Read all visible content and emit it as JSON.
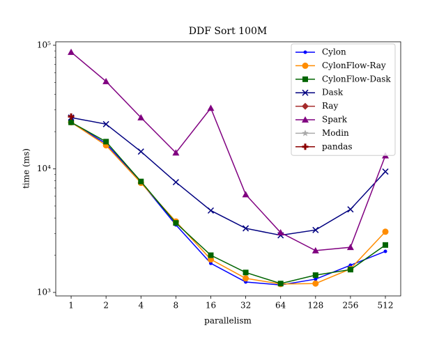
{
  "chart_data": {
    "type": "line",
    "title": "DDF Sort 100M",
    "x_label": "parallelism",
    "y_label": "time (ms)",
    "x": [
      1,
      2,
      4,
      8,
      16,
      32,
      64,
      128,
      256,
      512
    ],
    "xscale": "log",
    "yscale": "log",
    "xlim": [
      0.737,
      694
    ],
    "ylim": [
      937,
      106700
    ],
    "xticks": [
      1,
      2,
      4,
      8,
      16,
      32,
      64,
      128,
      256,
      512
    ],
    "yticks": [
      {
        "value": 1000,
        "label": "10³"
      },
      {
        "value": 10000,
        "label": "10⁴"
      },
      {
        "value": 100000,
        "label": "10⁵"
      }
    ],
    "legend": "upper right",
    "series": [
      {
        "name": "Cylon",
        "color": "#0000ff",
        "marker": "point",
        "values": [
          23700,
          16000,
          7800,
          3520,
          1720,
          1215,
          1150,
          1280,
          1660,
          2150
        ]
      },
      {
        "name": "CylonFlow-Ray",
        "color": "#ff8c00",
        "marker": "circle",
        "values": [
          23800,
          15500,
          7700,
          3750,
          1850,
          1300,
          1170,
          1180,
          1550,
          3100
        ]
      },
      {
        "name": "CylonFlow-Dask",
        "color": "#006400",
        "marker": "square",
        "values": [
          23800,
          16600,
          7900,
          3650,
          2000,
          1450,
          1180,
          1380,
          1530,
          2420
        ]
      },
      {
        "name": "Dask",
        "color": "#000080",
        "marker": "x",
        "values": [
          26000,
          23000,
          13800,
          7800,
          4600,
          3300,
          2900,
          3200,
          4700,
          9500
        ]
      },
      {
        "name": "Ray",
        "color": "#a52a2a",
        "marker": "diamond",
        "values": [
          null,
          null,
          null,
          null,
          null,
          null,
          null,
          null,
          null,
          null
        ]
      },
      {
        "name": "Spark",
        "color": "#800080",
        "marker": "triangle",
        "values": [
          88000,
          51000,
          26000,
          13500,
          31000,
          6200,
          3050,
          2180,
          2320,
          12800
        ]
      },
      {
        "name": "Modin",
        "color": "#aaaaaa",
        "marker": "star",
        "values": [
          null,
          null,
          null,
          null,
          null,
          null,
          null,
          null,
          null,
          null
        ]
      },
      {
        "name": "pandas",
        "color": "#8b0000",
        "marker": "plus",
        "values": [
          26500,
          null,
          null,
          null,
          null,
          null,
          null,
          null,
          null,
          null
        ]
      }
    ]
  }
}
